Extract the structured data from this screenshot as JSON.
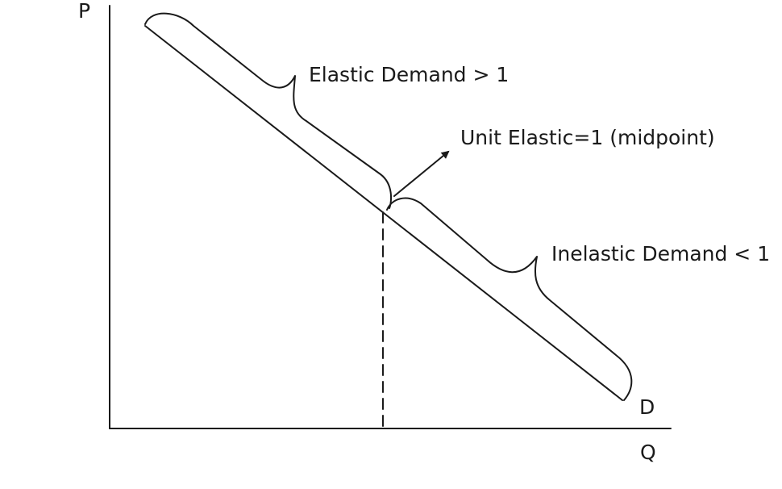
{
  "diagram": {
    "axes": {
      "y_label": "P",
      "x_label": "Q"
    },
    "curve": {
      "label": "D"
    },
    "regions": {
      "elastic": "Elastic Demand > 1",
      "unit": "Unit Elastic=1 (midpoint)",
      "inelastic": "Inelastic Demand < 1"
    }
  }
}
